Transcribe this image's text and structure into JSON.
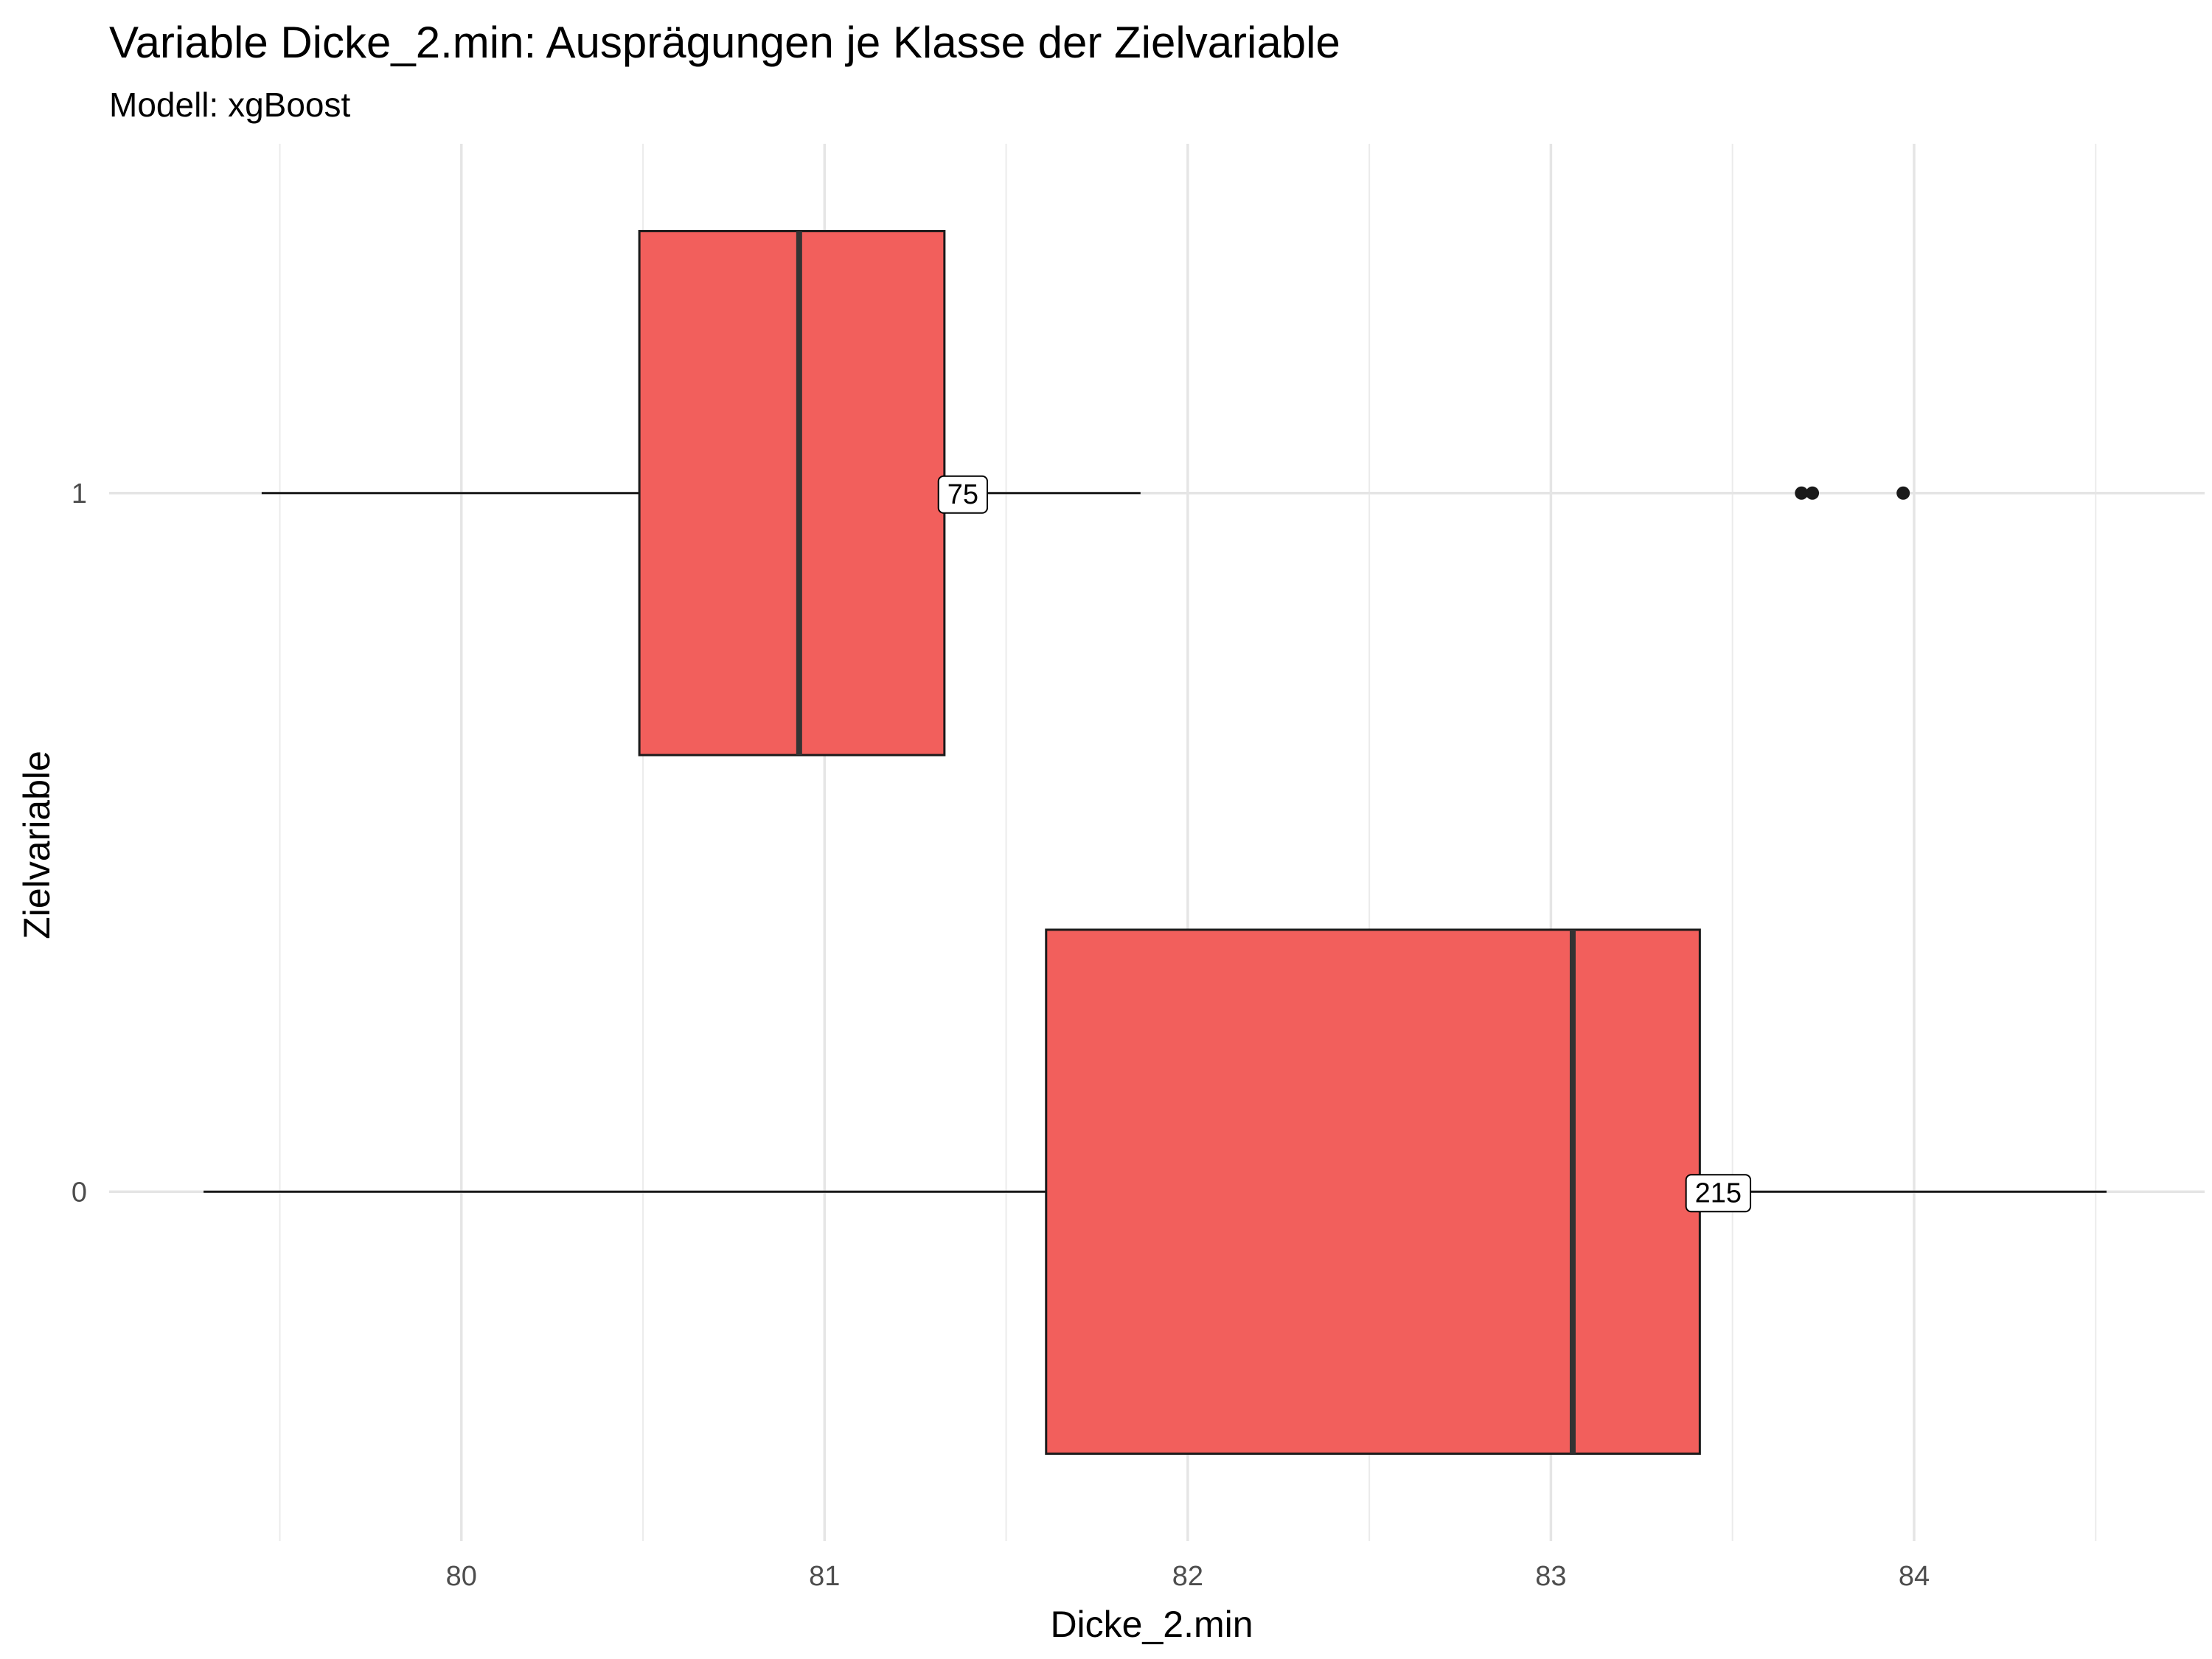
{
  "chart_data": {
    "type": "boxplot",
    "orientation": "horizontal",
    "title": "Variable Dicke_2.min: Ausprägungen je Klasse der Zielvariable",
    "subtitle": "Modell: xgBoost",
    "xlabel": "Dicke_2.min",
    "ylabel": "Zielvariable",
    "xlim": [
      79.03,
      84.8
    ],
    "x_ticks": [
      80,
      81,
      82,
      83,
      84
    ],
    "y_categories": [
      "0",
      "1"
    ],
    "grid": true,
    "box_color": "#F25F5C",
    "series": [
      {
        "category": "1",
        "whisker_low": 79.45,
        "q1": 80.49,
        "median": 80.93,
        "q3": 81.33,
        "whisker_high": 81.87,
        "outliers": [
          83.69,
          83.72,
          83.97
        ],
        "count_label": "75"
      },
      {
        "category": "0",
        "whisker_low": 79.29,
        "q1": 81.61,
        "median": 83.06,
        "q3": 83.41,
        "whisker_high": 84.53,
        "outliers": [],
        "count_label": "215"
      }
    ]
  }
}
